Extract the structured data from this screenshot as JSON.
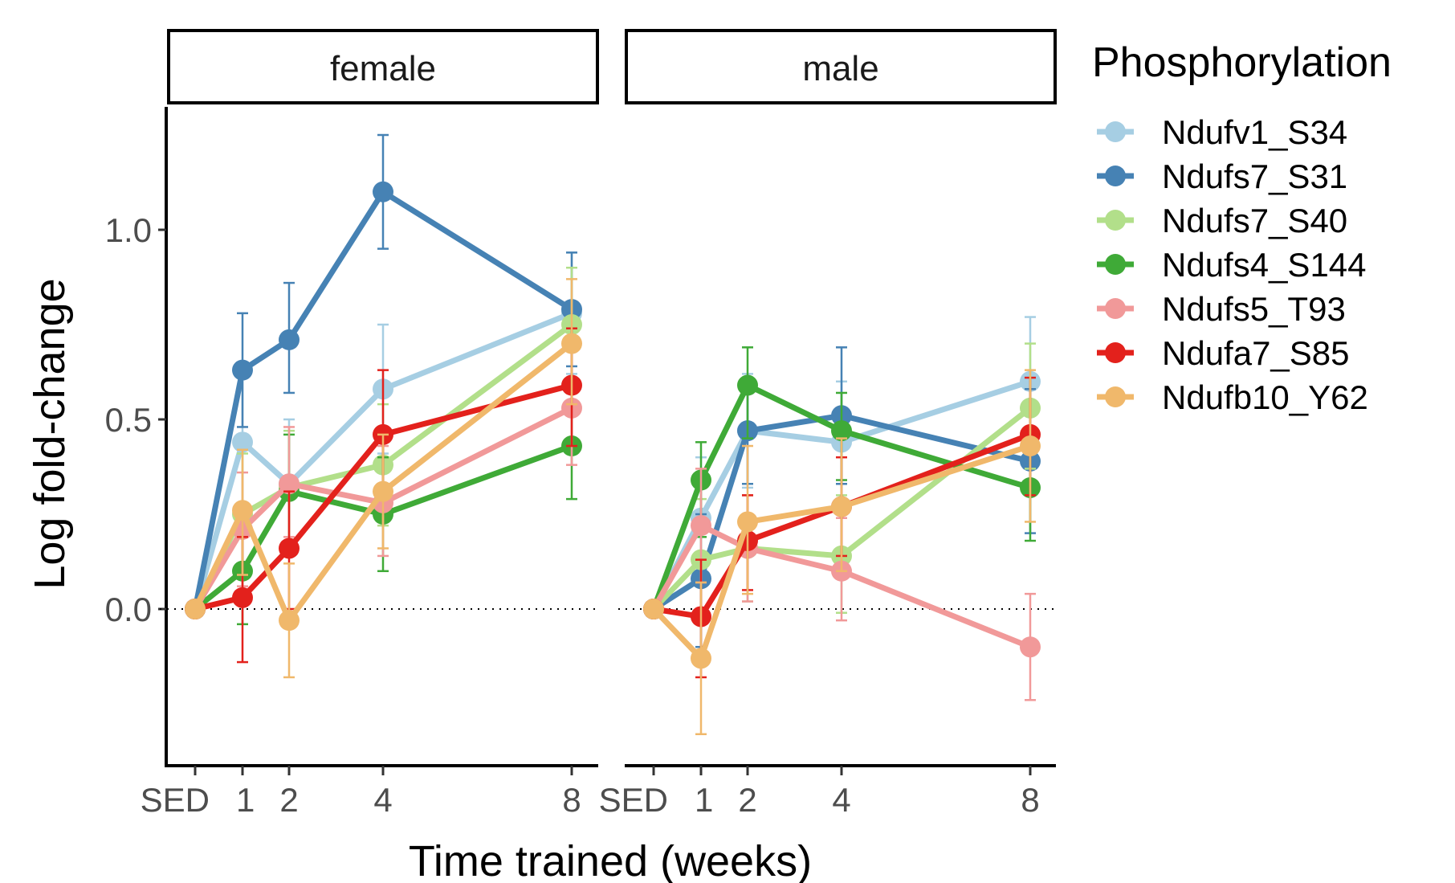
{
  "chart_data": {
    "type": "line",
    "x_tick_labels": [
      "SED",
      "1",
      "2",
      "4",
      "8"
    ],
    "x_values": [
      0,
      1,
      2,
      4,
      8
    ],
    "xlabel": "Time trained (weeks)",
    "ylabel": "Log fold-change",
    "ylim": [
      -0.41,
      1.32
    ],
    "y_ticks": [
      0.0,
      0.5,
      1.0
    ],
    "y_tick_labels": [
      "0.0",
      "0.5",
      "1.0"
    ],
    "reference_line": 0,
    "legend_title": "Phosphorylation",
    "legend_position": "right",
    "panels": [
      {
        "label": "female",
        "series": [
          {
            "name": "Ndufv1_S34",
            "color": "#A6CEE3",
            "values": [
              0,
              0.44,
              0.33,
              0.58,
              0.78
            ],
            "err_low": [
              0,
              0.27,
              0.16,
              0.41,
              0.62
            ],
            "err_high": [
              0,
              0.61,
              0.5,
              0.75,
              0.94
            ]
          },
          {
            "name": "Ndufs7_S31",
            "color": "#4682B4",
            "values": [
              0,
              0.63,
              0.71,
              1.1,
              0.79
            ],
            "err_low": [
              0,
              0.48,
              0.57,
              0.95,
              0.64
            ],
            "err_high": [
              0,
              0.78,
              0.86,
              1.25,
              0.94
            ]
          },
          {
            "name": "Ndufs7_S40",
            "color": "#B2DF8A",
            "values": [
              0,
              0.25,
              0.32,
              0.38,
              0.75
            ],
            "err_low": [
              0,
              0.09,
              0.17,
              0.22,
              0.6
            ],
            "err_high": [
              0,
              0.41,
              0.47,
              0.54,
              0.9
            ]
          },
          {
            "name": "Ndufs4_S144",
            "color": "#3FAA37",
            "values": [
              0,
              0.1,
              0.31,
              0.25,
              0.43
            ],
            "err_low": [
              0,
              -0.04,
              0.15,
              0.1,
              0.29
            ],
            "err_high": [
              0,
              0.25,
              0.46,
              0.4,
              0.58
            ]
          },
          {
            "name": "Ndufs5_T93",
            "color": "#F19999",
            "values": [
              0,
              0.21,
              0.33,
              0.28,
              0.53
            ],
            "err_low": [
              0,
              0.06,
              0.19,
              0.14,
              0.38
            ],
            "err_high": [
              0,
              0.36,
              0.48,
              0.43,
              0.68
            ]
          },
          {
            "name": "Ndufa7_S85",
            "color": "#E3211C",
            "values": [
              0,
              0.03,
              0.16,
              0.46,
              0.59
            ],
            "err_low": [
              0,
              -0.14,
              0.0,
              0.3,
              0.43
            ],
            "err_high": [
              0,
              0.19,
              0.31,
              0.63,
              0.74
            ]
          },
          {
            "name": "Ndufb10_Y62",
            "color": "#F0B86B",
            "values": [
              0,
              0.26,
              -0.03,
              0.31,
              0.7
            ],
            "err_low": [
              0,
              0.09,
              -0.18,
              0.16,
              0.54
            ],
            "err_high": [
              0,
              0.42,
              0.12,
              0.46,
              0.87
            ]
          }
        ]
      },
      {
        "label": "male",
        "series": [
          {
            "name": "Ndufv1_S34",
            "color": "#A6CEE3",
            "values": [
              0,
              0.24,
              0.47,
              0.44,
              0.6
            ],
            "err_low": [
              0,
              0.08,
              0.32,
              0.28,
              0.44
            ],
            "err_high": [
              0,
              0.4,
              0.62,
              0.6,
              0.77
            ]
          },
          {
            "name": "Ndufs7_S31",
            "color": "#4682B4",
            "values": [
              0,
              0.08,
              0.47,
              0.51,
              0.39
            ],
            "err_low": [
              0,
              -0.1,
              0.33,
              0.33,
              0.2
            ],
            "err_high": [
              0,
              0.25,
              0.61,
              0.69,
              0.58
            ]
          },
          {
            "name": "Ndufs7_S40",
            "color": "#B2DF8A",
            "values": [
              0,
              0.13,
              0.16,
              0.14,
              0.53
            ],
            "err_low": [
              0,
              -0.03,
              0.02,
              -0.01,
              0.37
            ],
            "err_high": [
              0,
              0.29,
              0.3,
              0.3,
              0.7
            ]
          },
          {
            "name": "Ndufs4_S144",
            "color": "#3FAA37",
            "values": [
              0,
              0.34,
              0.59,
              0.47,
              0.32
            ],
            "err_low": [
              0,
              0.19,
              0.45,
              0.34,
              0.18
            ],
            "err_high": [
              0,
              0.44,
              0.69,
              0.57,
              0.47
            ]
          },
          {
            "name": "Ndufs5_T93",
            "color": "#F19999",
            "values": [
              0,
              0.22,
              0.16,
              0.1,
              -0.1
            ],
            "err_low": [
              0,
              0.07,
              0.02,
              -0.03,
              -0.24
            ],
            "err_high": [
              0,
              0.37,
              0.3,
              0.24,
              0.04
            ]
          },
          {
            "name": "Ndufa7_S85",
            "color": "#E3211C",
            "values": [
              0,
              -0.02,
              0.18,
              0.27,
              0.46
            ],
            "err_low": [
              0,
              -0.18,
              0.05,
              0.14,
              0.3
            ],
            "err_high": [
              0,
              0.13,
              0.3,
              0.4,
              0.61
            ]
          },
          {
            "name": "Ndufb10_Y62",
            "color": "#F0B86B",
            "values": [
              0,
              -0.13,
              0.23,
              0.27,
              0.43
            ],
            "err_low": [
              0,
              -0.33,
              0.04,
              0.1,
              0.23
            ],
            "err_high": [
              0,
              0.07,
              0.43,
              0.45,
              0.63
            ]
          }
        ]
      }
    ]
  }
}
